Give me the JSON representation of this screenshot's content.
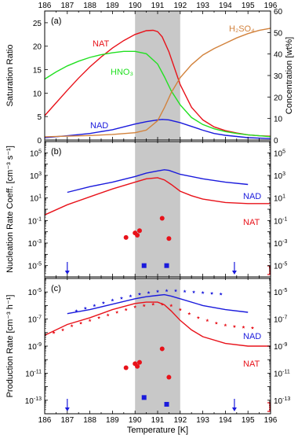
{
  "chart_data": {
    "type": "line",
    "xlabel": "Temperature [K]",
    "xlim": [
      186,
      196
    ],
    "x_ticks": [
      "186",
      "187",
      "188",
      "189",
      "190",
      "191",
      "192",
      "193",
      "194",
      "195",
      "196"
    ],
    "shaded_region": [
      190,
      192
    ],
    "colors": {
      "NAT": "#e8121a",
      "NAD": "#1a1adc",
      "HNO3": "#22e022",
      "H2SO4": "#d2823c",
      "shade": "#c8c8c8"
    },
    "panels": [
      {
        "id": "a",
        "label": "(a)",
        "ylabel": "Saturation Ratio",
        "ylim": [
          0,
          27.5
        ],
        "yticks": [
          "0",
          "5",
          "10",
          "15",
          "20",
          "25"
        ],
        "ylabel_right": "Concentration [wt%]",
        "ylim_right": [
          0,
          60
        ],
        "yticks_right": [
          "0",
          "10",
          "20",
          "30",
          "40",
          "50",
          "60"
        ],
        "series": [
          {
            "name": "NAT",
            "label": "NAT",
            "color": "#e8121a",
            "x": [
              186,
              186.5,
              187,
              187.5,
              188,
              188.5,
              189,
              189.5,
              190,
              190.5,
              190.8,
              191,
              191.2,
              191.5,
              192,
              192.5,
              193,
              193.5,
              194,
              194.5,
              195,
              195.5,
              196
            ],
            "y": [
              5.2,
              7.9,
              10.6,
              13.2,
              15.6,
              17.7,
              19.6,
              21.2,
              22.5,
              23.3,
              23.4,
              23.1,
              22,
              18.8,
              11.8,
              7,
              4.3,
              2.8,
              2,
              1.5,
              1.1,
              0.9,
              0.8
            ]
          },
          {
            "name": "HNO3",
            "label": "HNO₃",
            "color": "#22e022",
            "x": [
              186,
              186.5,
              187,
              187.5,
              188,
              188.5,
              189,
              189.5,
              190,
              190.5,
              191,
              191.3,
              191.6,
              192,
              192.5,
              193,
              193.5,
              194,
              194.5,
              195,
              195.5,
              196
            ],
            "y": [
              13,
              14.5,
              15.8,
              16.8,
              17.6,
              18.2,
              18.6,
              18.9,
              18.9,
              18.4,
              16.2,
              13.5,
              10.5,
              7.5,
              4.8,
              3.3,
              2.4,
              1.8,
              1.4,
              1.1,
              0.9,
              0.7
            ]
          },
          {
            "name": "NAD",
            "label": "NAD",
            "color": "#1a1adc",
            "x": [
              186,
              187,
              188,
              189,
              189.5,
              190,
              190.5,
              191,
              191.2,
              191.5,
              192,
              192.5,
              193,
              193.5,
              194,
              195,
              196
            ],
            "y": [
              0.5,
              0.9,
              1.4,
              2.2,
              2.8,
              3.4,
              3.9,
              4.3,
              4.4,
              4.3,
              3.7,
              2.9,
              2.1,
              1.4,
              1,
              0.5,
              0.3
            ]
          },
          {
            "name": "H2SO4",
            "label": "H₂SO₄",
            "color": "#d2823c",
            "axis": "right",
            "x": [
              186,
              187,
              188,
              189,
              190,
              190.5,
              191,
              191.3,
              191.6,
              192,
              192.5,
              193,
              193.5,
              194,
              194.5,
              195,
              195.5,
              196
            ],
            "y": [
              1.5,
              1.8,
              2.1,
              2.6,
              3.4,
              4.6,
              9,
              15,
              22,
              29,
              35,
              39.5,
              42.5,
              45,
              47.5,
              49.5,
              51,
              52
            ]
          }
        ]
      },
      {
        "id": "b",
        "label": "(b)",
        "ylabel": "Nucleation Rate Coeff. [cm⁻³ s⁻¹]",
        "yscale": "log",
        "ylim_exp": [
          -6,
          6
        ],
        "yticks": [
          "10⁻⁵",
          "10⁻³",
          "10⁻¹",
          "10¹",
          "10³",
          "10⁵"
        ],
        "series": [
          {
            "name": "NAD",
            "label": "NAD",
            "color": "#1a1adc",
            "x": [
              187,
              188,
              189,
              190,
              190.5,
              191,
              191.3,
              191.5,
              192,
              193,
              194,
              195
            ],
            "y_log10": [
              1.5,
              2,
              2.4,
              2.9,
              3.2,
              3.4,
              3.5,
              3.45,
              3.1,
              2.7,
              2.4,
              2.2
            ]
          },
          {
            "name": "NAT",
            "label": "NAT",
            "color": "#e8121a",
            "x": [
              186,
              187,
              188,
              189,
              190,
              190.5,
              191,
              191.3,
              191.6,
              192,
              192.5,
              193,
              194,
              195,
              196
            ],
            "y_log10": [
              -0.5,
              0.4,
              1.1,
              1.8,
              2.4,
              2.7,
              2.8,
              2.6,
              2.2,
              1.6,
              1.2,
              0.9,
              0.6,
              0.5,
              0.5
            ]
          }
        ],
        "points": [
          {
            "name": "NAT observations",
            "color": "#e8121a",
            "marker": "circle",
            "x": [
              189.6,
              190,
              190.1,
              190.2,
              191.2,
              191.5
            ],
            "y_log10": [
              -2.5,
              -2.1,
              -2.3,
              -1.9,
              -0.8,
              -2.6
            ]
          },
          {
            "name": "NAD observations",
            "color": "#1a1adc",
            "marker": "square",
            "x": [
              190.4,
              191.4
            ],
            "y_log10": [
              -5,
              -5
            ]
          }
        ],
        "arrows_x": [
          187,
          194.4
        ]
      },
      {
        "id": "c",
        "label": "(c)",
        "ylabel": "Production Rate [cm⁻³ h⁻¹]",
        "yscale": "log",
        "ylim_exp": [
          -14,
          -4
        ],
        "yticks": [
          "10⁻¹³",
          "10⁻¹¹",
          "10⁻⁹",
          "10⁻⁷",
          "10⁻⁵"
        ],
        "yticks_right": [
          "10⁻¹³",
          "10⁻¹¹",
          "10⁻⁹",
          "10⁻⁷",
          "10⁻⁵"
        ],
        "series": [
          {
            "name": "NAD",
            "label": "NAD",
            "color": "#1a1adc",
            "x": [
              187,
              188,
              189,
              190,
              190.5,
              191,
              191.3,
              191.6,
              192,
              193,
              194,
              195
            ],
            "y_log10": [
              -6.6,
              -6.3,
              -5.9,
              -5.5,
              -5.35,
              -5.25,
              -5.2,
              -5.3,
              -5.5,
              -6,
              -6.3,
              -6.5
            ]
          },
          {
            "name": "NAT",
            "label": "NAT",
            "color": "#e8121a",
            "x": [
              186,
              187,
              188,
              189,
              190,
              190.5,
              191,
              191.3,
              191.6,
              192,
              192.5,
              193,
              194,
              195,
              196
            ],
            "y_log10": [
              -8.2,
              -7.4,
              -6.9,
              -6.3,
              -5.85,
              -5.75,
              -5.75,
              -5.95,
              -6.4,
              -7.1,
              -7.8,
              -8.3,
              -8.8,
              -9,
              -9
            ]
          }
        ],
        "stars": [
          {
            "name": "NAD stars",
            "color": "#1a1adc",
            "x": [
              187.4,
              187.8,
              188.2,
              188.6,
              189,
              189.4,
              189.8,
              190.2,
              190.6,
              191,
              191.4,
              191.8,
              192.2,
              192.6,
              193,
              193.4,
              193.8
            ],
            "y_log10": [
              -6.4,
              -6.2,
              -6,
              -5.8,
              -5.6,
              -5.45,
              -5.3,
              -5.15,
              -5.05,
              -4.95,
              -4.9,
              -4.9,
              -4.95,
              -5,
              -5.05,
              -5.1,
              -5.15
            ]
          },
          {
            "name": "NAT stars",
            "color": "#e8121a",
            "x": [
              186.4,
              186.8,
              187.2,
              187.6,
              188,
              188.4,
              188.8,
              189.2,
              189.6,
              190,
              190.4,
              190.8,
              191.2,
              191.6,
              192,
              192.4,
              192.8,
              193.2,
              193.6,
              194,
              194.4,
              194.8,
              195.2
            ],
            "y_log10": [
              -8,
              -7.8,
              -7.5,
              -7.3,
              -7.1,
              -6.9,
              -6.7,
              -6.5,
              -6.3,
              -6.1,
              -6,
              -5.9,
              -5.9,
              -6,
              -6.3,
              -6.6,
              -6.9,
              -7.1,
              -7.3,
              -7.45,
              -7.55,
              -7.6,
              -7.65
            ]
          }
        ],
        "points": [
          {
            "name": "NAT observations",
            "color": "#e8121a",
            "marker": "circle",
            "x": [
              189.6,
              190,
              190.1,
              190.2,
              191.2,
              191.5
            ],
            "y_log10": [
              -10.6,
              -10.3,
              -10.5,
              -10.2,
              -9.2,
              -11.3
            ]
          },
          {
            "name": "NAD observations",
            "color": "#1a1adc",
            "marker": "square",
            "x": [
              190.4,
              191.4
            ],
            "y_log10": [
              -12.8,
              -13.3
            ]
          }
        ],
        "arrows_x": [
          187,
          194.4
        ]
      }
    ]
  }
}
